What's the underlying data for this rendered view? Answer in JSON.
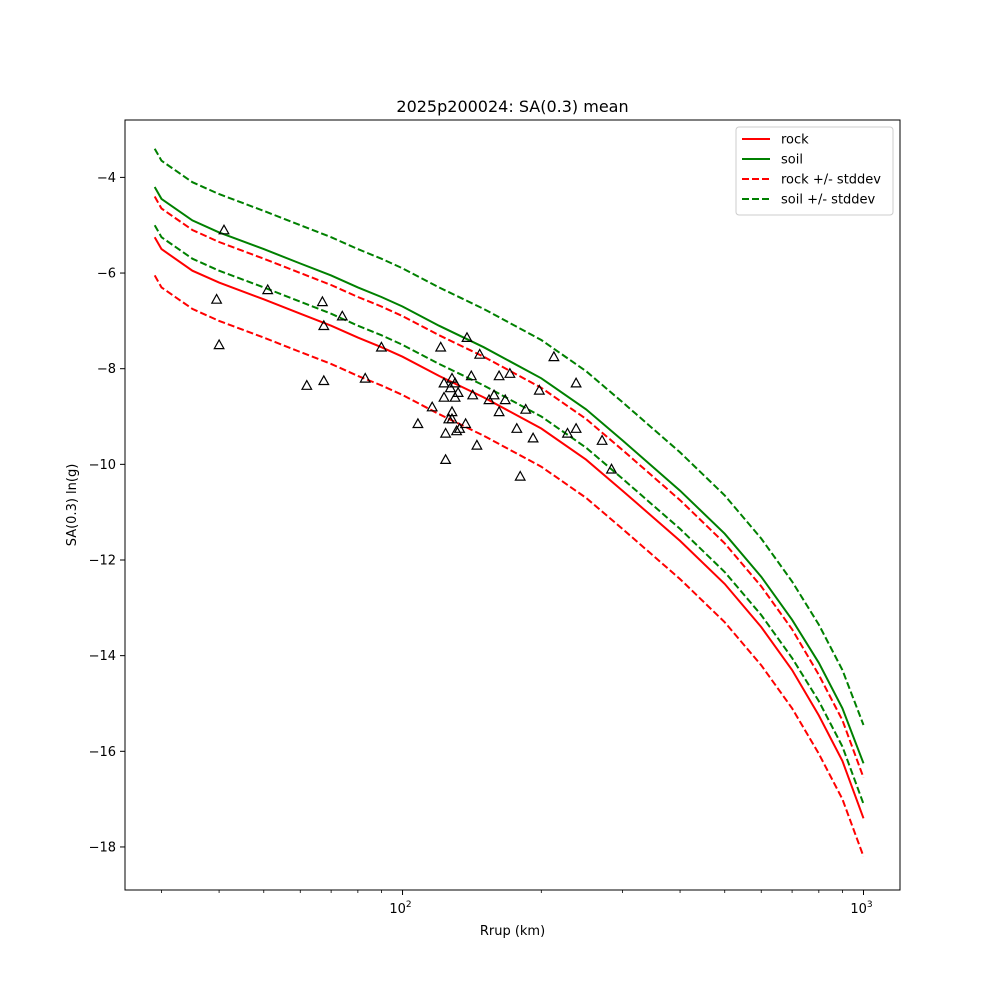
{
  "chart_data": {
    "type": "line",
    "title": "2025p200024: SA(0.3) mean",
    "xlabel": "Rrup (km)",
    "ylabel": "SA(0.3) ln(g)",
    "xscale": "log",
    "xlim": [
      25,
      1200
    ],
    "ylim": [
      -18.9,
      -2.8
    ],
    "x_ticks": [
      {
        "value": 100,
        "label": "10",
        "exp": "2"
      },
      {
        "value": 1000,
        "label": "10",
        "exp": "3"
      }
    ],
    "y_ticks": [
      -4,
      -6,
      -8,
      -10,
      -12,
      -14,
      -16,
      -18
    ],
    "y_tick_labels": [
      "−4",
      "−6",
      "−8",
      "−10",
      "−12",
      "−14",
      "−16",
      "−18"
    ],
    "grid": false,
    "legend_position": "top-right",
    "series": [
      {
        "name": "rock",
        "style": "solid",
        "color": "#ff0000",
        "points": [
          [
            29,
            -5.25
          ],
          [
            30,
            -5.5
          ],
          [
            35,
            -5.95
          ],
          [
            40,
            -6.2
          ],
          [
            50,
            -6.55
          ],
          [
            60,
            -6.85
          ],
          [
            70,
            -7.1
          ],
          [
            80,
            -7.35
          ],
          [
            90,
            -7.55
          ],
          [
            100,
            -7.75
          ],
          [
            120,
            -8.15
          ],
          [
            150,
            -8.6
          ],
          [
            200,
            -9.25
          ],
          [
            250,
            -9.9
          ],
          [
            300,
            -10.55
          ],
          [
            400,
            -11.6
          ],
          [
            500,
            -12.5
          ],
          [
            600,
            -13.4
          ],
          [
            700,
            -14.3
          ],
          [
            800,
            -15.25
          ],
          [
            900,
            -16.2
          ],
          [
            1000,
            -17.4
          ]
        ]
      },
      {
        "name": "soil",
        "style": "solid",
        "color": "#008000",
        "points": [
          [
            29,
            -4.2
          ],
          [
            30,
            -4.45
          ],
          [
            35,
            -4.9
          ],
          [
            40,
            -5.15
          ],
          [
            50,
            -5.5
          ],
          [
            60,
            -5.8
          ],
          [
            70,
            -6.05
          ],
          [
            80,
            -6.3
          ],
          [
            90,
            -6.5
          ],
          [
            100,
            -6.7
          ],
          [
            120,
            -7.1
          ],
          [
            150,
            -7.55
          ],
          [
            200,
            -8.2
          ],
          [
            250,
            -8.85
          ],
          [
            300,
            -9.5
          ],
          [
            400,
            -10.55
          ],
          [
            500,
            -11.45
          ],
          [
            600,
            -12.35
          ],
          [
            700,
            -13.25
          ],
          [
            800,
            -14.15
          ],
          [
            900,
            -15.1
          ],
          [
            1000,
            -16.25
          ]
        ]
      },
      {
        "name": "rock +/- stddev",
        "style": "dashed",
        "color": "#ff0000",
        "points": [
          [
            29,
            -4.4
          ],
          [
            30,
            -4.65
          ],
          [
            35,
            -5.1
          ],
          [
            40,
            -5.35
          ],
          [
            50,
            -5.7
          ],
          [
            60,
            -6.0
          ],
          [
            70,
            -6.25
          ],
          [
            80,
            -6.5
          ],
          [
            90,
            -6.7
          ],
          [
            100,
            -6.9
          ],
          [
            120,
            -7.3
          ],
          [
            150,
            -7.75
          ],
          [
            200,
            -8.4
          ],
          [
            250,
            -9.05
          ],
          [
            300,
            -9.7
          ],
          [
            400,
            -10.75
          ],
          [
            500,
            -11.65
          ],
          [
            600,
            -12.55
          ],
          [
            700,
            -13.45
          ],
          [
            800,
            -14.4
          ],
          [
            900,
            -15.35
          ],
          [
            1000,
            -16.55
          ]
        ]
      },
      {
        "name": "",
        "style": "dashed",
        "color": "#ff0000",
        "points": [
          [
            29,
            -6.05
          ],
          [
            30,
            -6.3
          ],
          [
            35,
            -6.75
          ],
          [
            40,
            -7.0
          ],
          [
            50,
            -7.35
          ],
          [
            60,
            -7.65
          ],
          [
            70,
            -7.9
          ],
          [
            80,
            -8.15
          ],
          [
            90,
            -8.35
          ],
          [
            100,
            -8.55
          ],
          [
            120,
            -8.95
          ],
          [
            150,
            -9.4
          ],
          [
            200,
            -10.05
          ],
          [
            250,
            -10.7
          ],
          [
            300,
            -11.35
          ],
          [
            400,
            -12.4
          ],
          [
            500,
            -13.3
          ],
          [
            600,
            -14.2
          ],
          [
            700,
            -15.1
          ],
          [
            800,
            -16.05
          ],
          [
            900,
            -17.0
          ],
          [
            1000,
            -18.2
          ]
        ]
      },
      {
        "name": "soil +/- stddev",
        "style": "dashed",
        "color": "#008000",
        "points": [
          [
            29,
            -3.4
          ],
          [
            30,
            -3.65
          ],
          [
            35,
            -4.1
          ],
          [
            40,
            -4.35
          ],
          [
            50,
            -4.7
          ],
          [
            60,
            -5.0
          ],
          [
            70,
            -5.25
          ],
          [
            80,
            -5.5
          ],
          [
            90,
            -5.7
          ],
          [
            100,
            -5.9
          ],
          [
            120,
            -6.3
          ],
          [
            150,
            -6.75
          ],
          [
            200,
            -7.4
          ],
          [
            250,
            -8.05
          ],
          [
            300,
            -8.7
          ],
          [
            400,
            -9.75
          ],
          [
            500,
            -10.65
          ],
          [
            600,
            -11.55
          ],
          [
            700,
            -12.45
          ],
          [
            800,
            -13.35
          ],
          [
            900,
            -14.3
          ],
          [
            1000,
            -15.45
          ]
        ]
      },
      {
        "name": "",
        "style": "dashed",
        "color": "#008000",
        "points": [
          [
            29,
            -5.0
          ],
          [
            30,
            -5.25
          ],
          [
            35,
            -5.7
          ],
          [
            40,
            -5.95
          ],
          [
            50,
            -6.3
          ],
          [
            60,
            -6.6
          ],
          [
            70,
            -6.85
          ],
          [
            80,
            -7.1
          ],
          [
            90,
            -7.3
          ],
          [
            100,
            -7.5
          ],
          [
            120,
            -7.9
          ],
          [
            150,
            -8.35
          ],
          [
            200,
            -9.0
          ],
          [
            250,
            -9.65
          ],
          [
            300,
            -10.3
          ],
          [
            400,
            -11.35
          ],
          [
            500,
            -12.25
          ],
          [
            600,
            -13.15
          ],
          [
            700,
            -14.05
          ],
          [
            800,
            -14.95
          ],
          [
            900,
            -15.9
          ],
          [
            1000,
            -17.1
          ]
        ]
      }
    ],
    "observations": {
      "marker": "triangle",
      "points": [
        [
          41,
          -5.1
        ],
        [
          39.5,
          -6.55
        ],
        [
          40,
          -7.5
        ],
        [
          51,
          -6.35
        ],
        [
          62,
          -8.35
        ],
        [
          67,
          -6.6
        ],
        [
          67.5,
          -7.1
        ],
        [
          67.5,
          -8.25
        ],
        [
          74,
          -6.9
        ],
        [
          83,
          -8.2
        ],
        [
          90,
          -7.55
        ],
        [
          108,
          -9.15
        ],
        [
          116,
          -8.8
        ],
        [
          121,
          -7.55
        ],
        [
          123,
          -8.3
        ],
        [
          123,
          -8.6
        ],
        [
          124,
          -9.9
        ],
        [
          124,
          -9.35
        ],
        [
          126,
          -9.05
        ],
        [
          127,
          -8.4
        ],
        [
          128,
          -8.2
        ],
        [
          128,
          -8.9
        ],
        [
          128,
          -9.05
        ],
        [
          130,
          -8.3
        ],
        [
          130,
          -8.6
        ],
        [
          131,
          -9.3
        ],
        [
          132,
          -8.5
        ],
        [
          133,
          -9.25
        ],
        [
          137,
          -9.15
        ],
        [
          138,
          -7.35
        ],
        [
          141,
          -8.15
        ],
        [
          142,
          -8.55
        ],
        [
          145,
          -9.6
        ],
        [
          147,
          -7.7
        ],
        [
          154,
          -8.65
        ],
        [
          158,
          -8.55
        ],
        [
          162,
          -8.9
        ],
        [
          162,
          -8.15
        ],
        [
          167,
          -8.65
        ],
        [
          171,
          -8.1
        ],
        [
          177,
          -9.25
        ],
        [
          180,
          -10.25
        ],
        [
          185,
          -8.85
        ],
        [
          192,
          -9.45
        ],
        [
          198,
          -8.45
        ],
        [
          213,
          -7.75
        ],
        [
          228,
          -9.35
        ],
        [
          238,
          -8.3
        ],
        [
          238,
          -9.25
        ],
        [
          271,
          -9.5
        ],
        [
          284,
          -10.1
        ]
      ]
    }
  }
}
